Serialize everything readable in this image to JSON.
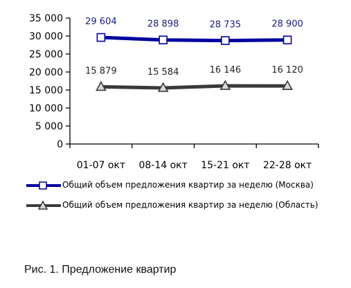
{
  "chart_data": {
    "type": "line",
    "categories": [
      "01-07 окт",
      "08-14 окт",
      "15-21 окт",
      "22-28 окт"
    ],
    "ylim": [
      0,
      35000
    ],
    "yticks": [
      "0",
      "5 000",
      "10 000",
      "15 000",
      "20 000",
      "25 000",
      "30 000",
      "35 000"
    ],
    "ytick_values": [
      0,
      5000,
      10000,
      15000,
      20000,
      25000,
      30000,
      35000
    ],
    "grid": false,
    "legend_position": "bottom",
    "series": [
      {
        "name": "Общий объем предложения квартир за неделю (Москва)",
        "values": [
          29604,
          28898,
          28735,
          28900
        ],
        "labels": [
          "29 604",
          "28 898",
          "28 735",
          "28 900"
        ],
        "color": "#0000a0",
        "label_color": "#1a1a80",
        "marker": "square"
      },
      {
        "name": "Общий объем предложения квартир за неделю (Область)",
        "values": [
          15879,
          15584,
          16146,
          16120
        ],
        "labels": [
          "15 879",
          "15 584",
          "16 146",
          "16 120"
        ],
        "color": "#3a3a3a",
        "label_color": "#222222",
        "marker": "triangle"
      }
    ]
  },
  "caption": "Рис. 1. Предложение квартир"
}
